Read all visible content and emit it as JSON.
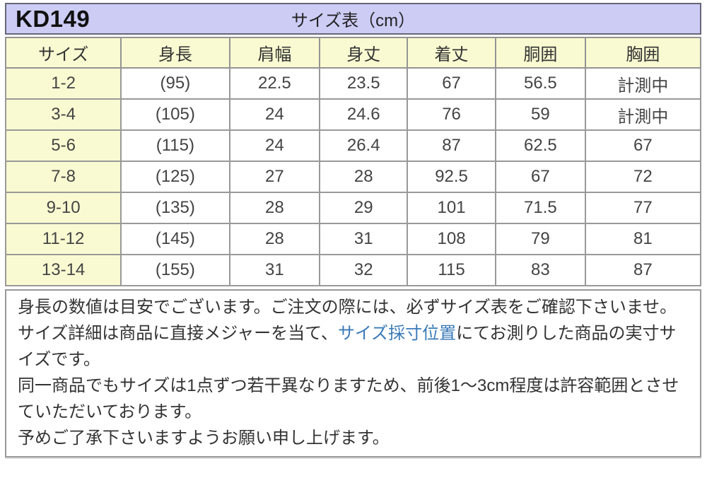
{
  "page": {
    "product_code": "KD149",
    "table_title": "サイズ表（cm）"
  },
  "size_table": {
    "columns": [
      "サイズ",
      "身長",
      "肩幅",
      "身丈",
      "着丈",
      "胴囲",
      "胸囲"
    ],
    "rows": [
      [
        "1-2",
        "(95)",
        "22.5",
        "23.5",
        "67",
        "56.5",
        "計測中"
      ],
      [
        "3-4",
        "(105)",
        "24",
        "24.6",
        "76",
        "59",
        "計測中"
      ],
      [
        "5-6",
        "(115)",
        "24",
        "26.4",
        "87",
        "62.5",
        "67"
      ],
      [
        "7-8",
        "(125)",
        "27",
        "28",
        "92.5",
        "67",
        "72"
      ],
      [
        "9-10",
        "(135)",
        "28",
        "29",
        "101",
        "71.5",
        "77"
      ],
      [
        "11-12",
        "(145)",
        "28",
        "31",
        "108",
        "79",
        "81"
      ],
      [
        "13-14",
        "(155)",
        "31",
        "32",
        "115",
        "83",
        "87"
      ]
    ]
  },
  "notes": {
    "line1": "身長の数値は目安でございます。ご注文の際には、必ずサイズ表をご確認下さいませ。",
    "line2_before_link": "サイズ詳細は商品に直接メジャーを当て、",
    "line2_link": "サイズ採寸位置",
    "line2_after_link": "にてお測りした商品の実寸サイズです。",
    "line3": "同一商品でもサイズは1点ずつ若干異なりますため、前後1〜3cm程度は許容範囲とさせていただいております。",
    "line4": "予めご了承下さいますようお願い申し上げます。"
  },
  "colors": {
    "header_band_bg": "#ccccf5",
    "header_band_border": "#666677",
    "table_header_bg": "#fafad2",
    "size_column_bg": "#fafad2",
    "grid_border": "#999999",
    "link_blue": "#3a7ab8",
    "text": "#333333"
  }
}
